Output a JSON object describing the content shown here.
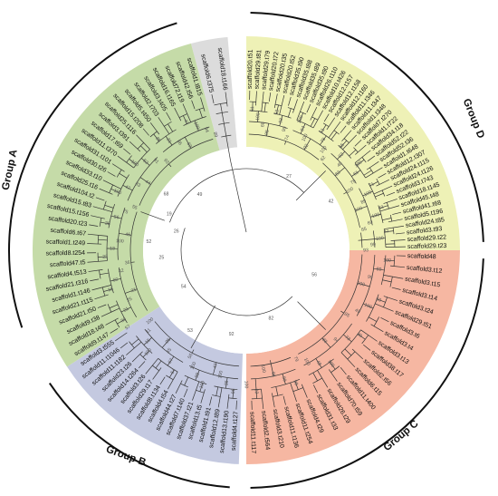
{
  "groups": [
    {
      "label": "Group A",
      "color": "#c5dba8"
    },
    {
      "label": "Group B",
      "color": "#c4c9e0"
    },
    {
      "label": "Group C",
      "color": "#f6b7a2"
    },
    {
      "label": "Group D",
      "color": "#eef1b6"
    }
  ],
  "outgroup": {
    "color": "#dcdcdc",
    "leaves": [
      "scaffold6.t375",
      "scaffold18.t166"
    ]
  },
  "group_a_leaves": [
    "scaffold9.t147",
    "scaffold18.t48",
    "scaffold9.t38",
    "scaffold21.t50",
    "scaffold21.t115",
    "scaffold1.t146",
    "scaffold21.t316",
    "scaffold4.t513",
    "scaffold47.t5",
    "scaffold8.t254",
    "scaffold1.t249",
    "scaffold6.t67",
    "scaffold20.t23",
    "scaffold15.t156",
    "scaffold15.t83",
    "scaffold104.t2",
    "scaffold25.t16",
    "scaffold33.t10",
    "scaffold30.t26",
    "scaffold31.t101",
    "scaffold11.t370",
    "scaffold17.t69",
    "scaffold3.t391",
    "scaffold25.t116",
    "scaffold15.t208",
    "scaffold5.t450",
    "scaffold2.t703",
    "scaffold3.t405",
    "scaffold16.t165",
    "scaffold72.t19",
    "scaffold42.t56",
    "scaffold1.t815"
  ],
  "group_b_leaves": [
    "scaffold4.t127",
    "scaffold13.t190",
    "scaffold12.t89",
    "scaffold1.t91",
    "scaffold13.t5",
    "scaffold37.t21",
    "scaffold7.t140",
    "scaffold44.t27",
    "scaffold4.t54",
    "scaffold8.t134",
    "scaffold29.t17",
    "scaffold3.t26",
    "scaffold14.t264",
    "scaffold23.t26",
    "scaffold11.t182",
    "scaffold11.t1046",
    "scaffold3.t555"
  ],
  "group_c_leaves": [
    "scaffold48",
    "scaffold3.t12",
    "scaffold3.t15",
    "scaffold3.t14",
    "scaffold3.t24",
    "scaffold29.t51",
    "scaffold3.t6",
    "scaffold3.t4",
    "scaffold3.t13",
    "scaffold38.t17",
    "scaffold2.t56",
    "scaffold6.t15",
    "scaffold11.t400",
    "scaffold70.t59",
    "scaffold26.t29",
    "scaffold31.t33",
    "scaffold4.t29",
    "scaffold11.t254",
    "scaffold11.t136",
    "scaffold3.t210",
    "scaffold2.t564",
    "scaffold11.t117"
  ],
  "group_d_leaves": [
    "scaffold20.t51",
    "scaffold29.t81",
    "scaffold29.t79",
    "scaffold20.t72",
    "scaffold20.t35",
    "scaffold20.t52",
    "scaffold35.t90",
    "scaffold35.t88",
    "scaffold35.t89",
    "scaffold35.t90",
    "scaffold26.t110",
    "scaffold10.t426",
    "scaffold12.t157",
    "scaffold12.t158",
    "scaffold12.t160",
    "scaffold11.t346",
    "scaffold11.t347",
    "scaffold1.t348",
    "scaffold7.t270",
    "scaffold1.t722",
    "scaffold34.t18",
    "scaffold52.t22",
    "scaffold52.t36",
    "scaffold1.t648",
    "scaffold12.t307",
    "scaffold24.t115",
    "scaffold24.t126",
    "scaffold3.t743",
    "scaffold18.t145",
    "scaffold45.t48",
    "scaffold41.t68",
    "scaffold5.t196",
    "scaffold24.t85",
    "scaffold3.t93",
    "scaffold29.t22",
    "scaffold29.t23"
  ],
  "bootstrap": {
    "group_a": [
      "39",
      "31",
      "25",
      "21",
      "16",
      "60",
      "42",
      "36",
      "22",
      "13",
      "100",
      "46",
      "38",
      "56",
      "75",
      "55",
      "100",
      "47",
      "83",
      "44",
      "100",
      "52",
      "91",
      "93",
      "85",
      "31",
      "86",
      "53",
      "47",
      "100",
      "94",
      "89"
    ],
    "group_b": [
      "96",
      "36",
      "100",
      "47",
      "100",
      "99",
      "100",
      "56",
      "54",
      "67",
      "45",
      "95",
      "100",
      "15",
      "11",
      "100",
      "57"
    ],
    "group_c": [
      "100",
      "89",
      "99",
      "100",
      "60",
      "100",
      "49",
      "85",
      "89",
      "73",
      "94",
      "83",
      "100",
      "48",
      "100",
      "79",
      "99",
      "90",
      "98",
      "100",
      "92",
      "100"
    ],
    "group_d": [
      "61",
      "100",
      "68",
      "95",
      "52",
      "93",
      "90",
      "74",
      "100",
      "94",
      "100",
      "92",
      "51",
      "78",
      "100",
      "62",
      "65",
      "92",
      "48",
      "83",
      "100",
      "61",
      "78",
      "100",
      "71",
      "100",
      "89",
      "100",
      "43",
      "100",
      "69",
      "85",
      "47",
      "100",
      "99",
      "93"
    ],
    "internal": [
      "82",
      "92",
      "53",
      "54",
      "25",
      "52",
      "26",
      "19",
      "68",
      "49",
      "27",
      "42",
      "56"
    ]
  }
}
